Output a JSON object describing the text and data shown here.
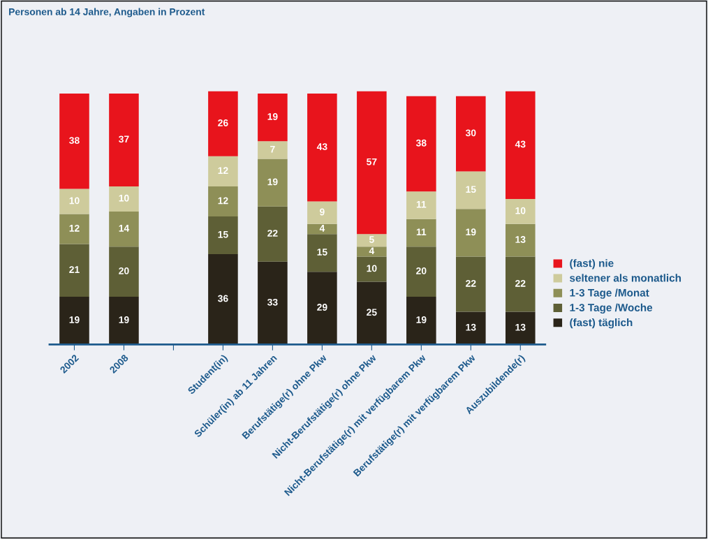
{
  "chart_data": {
    "type": "bar",
    "stacked": true,
    "data_labels": true,
    "legend": "right",
    "tick_labels": "x",
    "title": "Personen ab 14 Jahre, Angaben in Prozent",
    "categories": [
      "2002",
      "2008",
      null,
      "Student(in)",
      "Schüler(in) ab 11 Jahren",
      "Berufstätige(r) ohne Pkw",
      "Nicht-Berufstätige(r) ohne Pkw",
      "Nicht-Berufstätige(r) mit verfügbarem Pkw",
      "Berufstätige(r) mit verfügbarem Pkw",
      "Auszubildende(r)"
    ],
    "series": [
      {
        "name": "(fast) täglich",
        "color": "#2a2419",
        "values": [
          19,
          19,
          null,
          36,
          33,
          29,
          25,
          19,
          13,
          13
        ]
      },
      {
        "name": "1-3 Tage /Woche",
        "color": "#5e5f36",
        "values": [
          21,
          20,
          null,
          15,
          22,
          15,
          10,
          20,
          22,
          22
        ]
      },
      {
        "name": "1-3 Tage /Monat",
        "color": "#8e8f57",
        "values": [
          12,
          14,
          null,
          12,
          19,
          4,
          4,
          11,
          19,
          13
        ]
      },
      {
        "name": "seltener als monatlich",
        "color": "#cecb9c",
        "values": [
          10,
          10,
          null,
          12,
          7,
          9,
          5,
          11,
          15,
          10
        ]
      },
      {
        "name": "(fast) nie",
        "color": "#e8141c",
        "values": [
          38,
          37,
          null,
          26,
          19,
          43,
          57,
          38,
          30,
          43
        ]
      }
    ]
  }
}
